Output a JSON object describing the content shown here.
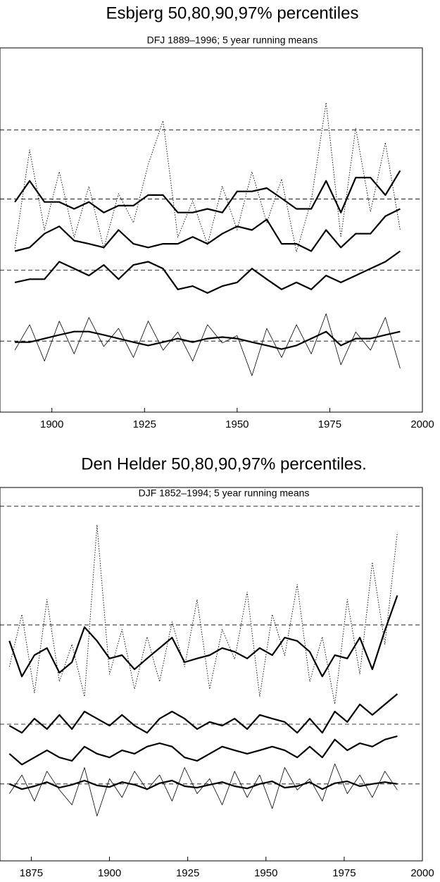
{
  "chart_data": [
    {
      "type": "line",
      "title": "Esbjerg 50,80,90,97% percentiles",
      "subtitle": "DFJ 1889–1996; 5 year running means",
      "x": [
        1890,
        1894,
        1898,
        1902,
        1906,
        1910,
        1914,
        1918,
        1922,
        1926,
        1930,
        1934,
        1938,
        1942,
        1946,
        1950,
        1954,
        1958,
        1962,
        1966,
        1970,
        1974,
        1978,
        1982,
        1986,
        1990,
        1994
      ],
      "series": [
        {
          "color": "#000000",
          "style": "dotted",
          "values": [
            45,
            72,
            50,
            66,
            48,
            62,
            45,
            60,
            52,
            68,
            80,
            48,
            58,
            46,
            62,
            50,
            66,
            52,
            64,
            44,
            58,
            85,
            48,
            78,
            55,
            74,
            50
          ]
        },
        {
          "color": "#000000",
          "style": "thin",
          "values": [
            17,
            24,
            14,
            25,
            16,
            26,
            18,
            23,
            15,
            25,
            17,
            22,
            14,
            24,
            19,
            21,
            10,
            23,
            15,
            24,
            16,
            27,
            13,
            22,
            17,
            26,
            12
          ]
        },
        {
          "color": "#000000",
          "style": "thick",
          "values": [
            57.7,
            63.5,
            57.7,
            57.7,
            55.8,
            57.7,
            54.8,
            56.7,
            56.7,
            59.6,
            59.6,
            54.8,
            54.8,
            55.8,
            54.8,
            60.6,
            60.6,
            61.5,
            58.7,
            55.8,
            55.8,
            63.5,
            54.8,
            64.4,
            64.4,
            59.6,
            66.3
          ]
        },
        {
          "color": "#000000",
          "style": "thick",
          "values": [
            44.2,
            45.2,
            49.0,
            51.0,
            47.1,
            46.2,
            45.2,
            50.0,
            46.2,
            45.2,
            46.2,
            46.2,
            48.1,
            46.2,
            49.0,
            51.0,
            50.0,
            52.9,
            46.2,
            46.2,
            44.2,
            50.0,
            45.2,
            49.0,
            49.0,
            53.8,
            55.8
          ]
        },
        {
          "color": "#000000",
          "style": "thick",
          "values": [
            35.6,
            36.5,
            36.5,
            41.3,
            39.4,
            37.5,
            40.4,
            36.5,
            40.4,
            41.3,
            39.4,
            33.7,
            34.6,
            32.7,
            34.6,
            35.6,
            39.4,
            36.5,
            33.7,
            35.6,
            33.7,
            37.5,
            35.6,
            37.5,
            39.4,
            41.3,
            44.2
          ]
        },
        {
          "color": "#000000",
          "style": "thick",
          "values": [
            19.2,
            19.2,
            20.2,
            21.2,
            22.1,
            22.1,
            21.2,
            20.2,
            19.2,
            18.3,
            19.2,
            20.2,
            19.2,
            20.2,
            20.6,
            20.2,
            19.2,
            18.3,
            17.3,
            18.3,
            20.2,
            22.1,
            18.3,
            20.2,
            20.2,
            21.2,
            22.1
          ]
        }
      ],
      "hlines": [
        19.5,
        39,
        58.5,
        77.5
      ],
      "xlim": [
        1886,
        2000
      ],
      "xticks": [
        1900,
        1925,
        1950,
        1975,
        2000
      ],
      "ylim": [
        0,
        100
      ]
    },
    {
      "type": "line",
      "title": "Den Helder 50,80,90,97% percentiles.",
      "subtitle": "DJF 1852–1994; 5 year running means",
      "x": [
        1868,
        1872,
        1876,
        1880,
        1884,
        1888,
        1892,
        1896,
        1900,
        1904,
        1908,
        1912,
        1916,
        1920,
        1924,
        1928,
        1932,
        1936,
        1940,
        1944,
        1948,
        1952,
        1956,
        1960,
        1964,
        1968,
        1972,
        1976,
        1980,
        1984,
        1988,
        1992
      ],
      "series": [
        {
          "color": "#000000",
          "style": "dotted",
          "values": [
            52,
            66,
            45,
            70,
            48,
            58,
            44,
            90,
            50,
            62,
            46,
            60,
            48,
            64,
            52,
            70,
            46,
            62,
            54,
            72,
            44,
            66,
            55,
            74,
            48,
            60,
            42,
            70,
            50,
            80,
            58,
            88
          ]
        },
        {
          "color": "#000000",
          "style": "thin",
          "values": [
            18,
            23,
            16,
            24,
            19,
            15,
            25,
            12,
            22,
            17,
            24,
            19,
            23,
            16,
            25,
            18,
            22,
            15,
            24,
            17,
            23,
            14,
            25,
            19,
            22,
            16,
            26,
            18,
            23,
            17,
            24,
            19
          ]
        },
        {
          "color": "#000000",
          "style": "thick",
          "values": [
            58.9,
            49.4,
            55.1,
            57.0,
            50.4,
            53.2,
            62.6,
            58.9,
            54.2,
            55.1,
            51.3,
            54.2,
            57.0,
            59.8,
            53.2,
            54.2,
            55.1,
            57.0,
            56.0,
            54.2,
            57.0,
            55.1,
            59.8,
            58.9,
            56.0,
            49.4,
            55.1,
            54.2,
            59.8,
            51.3,
            61.7,
            71.1
          ]
        },
        {
          "color": "#000000",
          "style": "thick",
          "values": [
            36.2,
            34.3,
            38.1,
            35.3,
            39.1,
            35.3,
            40.0,
            38.1,
            36.2,
            39.1,
            36.2,
            34.3,
            38.1,
            40.0,
            38.1,
            35.3,
            37.2,
            36.2,
            38.1,
            35.3,
            39.1,
            38.1,
            37.2,
            34.3,
            38.1,
            34.3,
            40.0,
            37.2,
            41.9,
            39.1,
            41.9,
            44.7
          ]
        },
        {
          "color": "#000000",
          "style": "thick",
          "values": [
            28.7,
            25.8,
            27.7,
            29.6,
            27.7,
            26.8,
            30.6,
            28.7,
            27.7,
            29.6,
            28.7,
            30.6,
            31.5,
            30.6,
            27.7,
            26.8,
            28.7,
            30.6,
            29.6,
            28.7,
            29.6,
            30.6,
            29.6,
            27.7,
            30.6,
            27.7,
            32.5,
            29.6,
            31.5,
            30.6,
            32.5,
            33.4
          ]
        },
        {
          "color": "#000000",
          "style": "thick",
          "values": [
            20.6,
            19.2,
            20.0,
            21.1,
            19.6,
            20.4,
            21.5,
            20.2,
            19.8,
            21.1,
            20.4,
            19.2,
            20.8,
            21.5,
            20.0,
            19.6,
            20.4,
            21.1,
            20.0,
            19.4,
            20.6,
            21.3,
            19.6,
            20.0,
            21.1,
            19.2,
            20.8,
            21.3,
            20.0,
            20.6,
            21.1,
            20.6
          ]
        }
      ],
      "hlines": [
        20.6,
        36.6,
        63.2,
        95
      ],
      "xlim": [
        1865,
        2000
      ],
      "xticks": [
        1875,
        1900,
        1925,
        1950,
        1975,
        2000
      ],
      "ylim": [
        0,
        100
      ]
    }
  ]
}
